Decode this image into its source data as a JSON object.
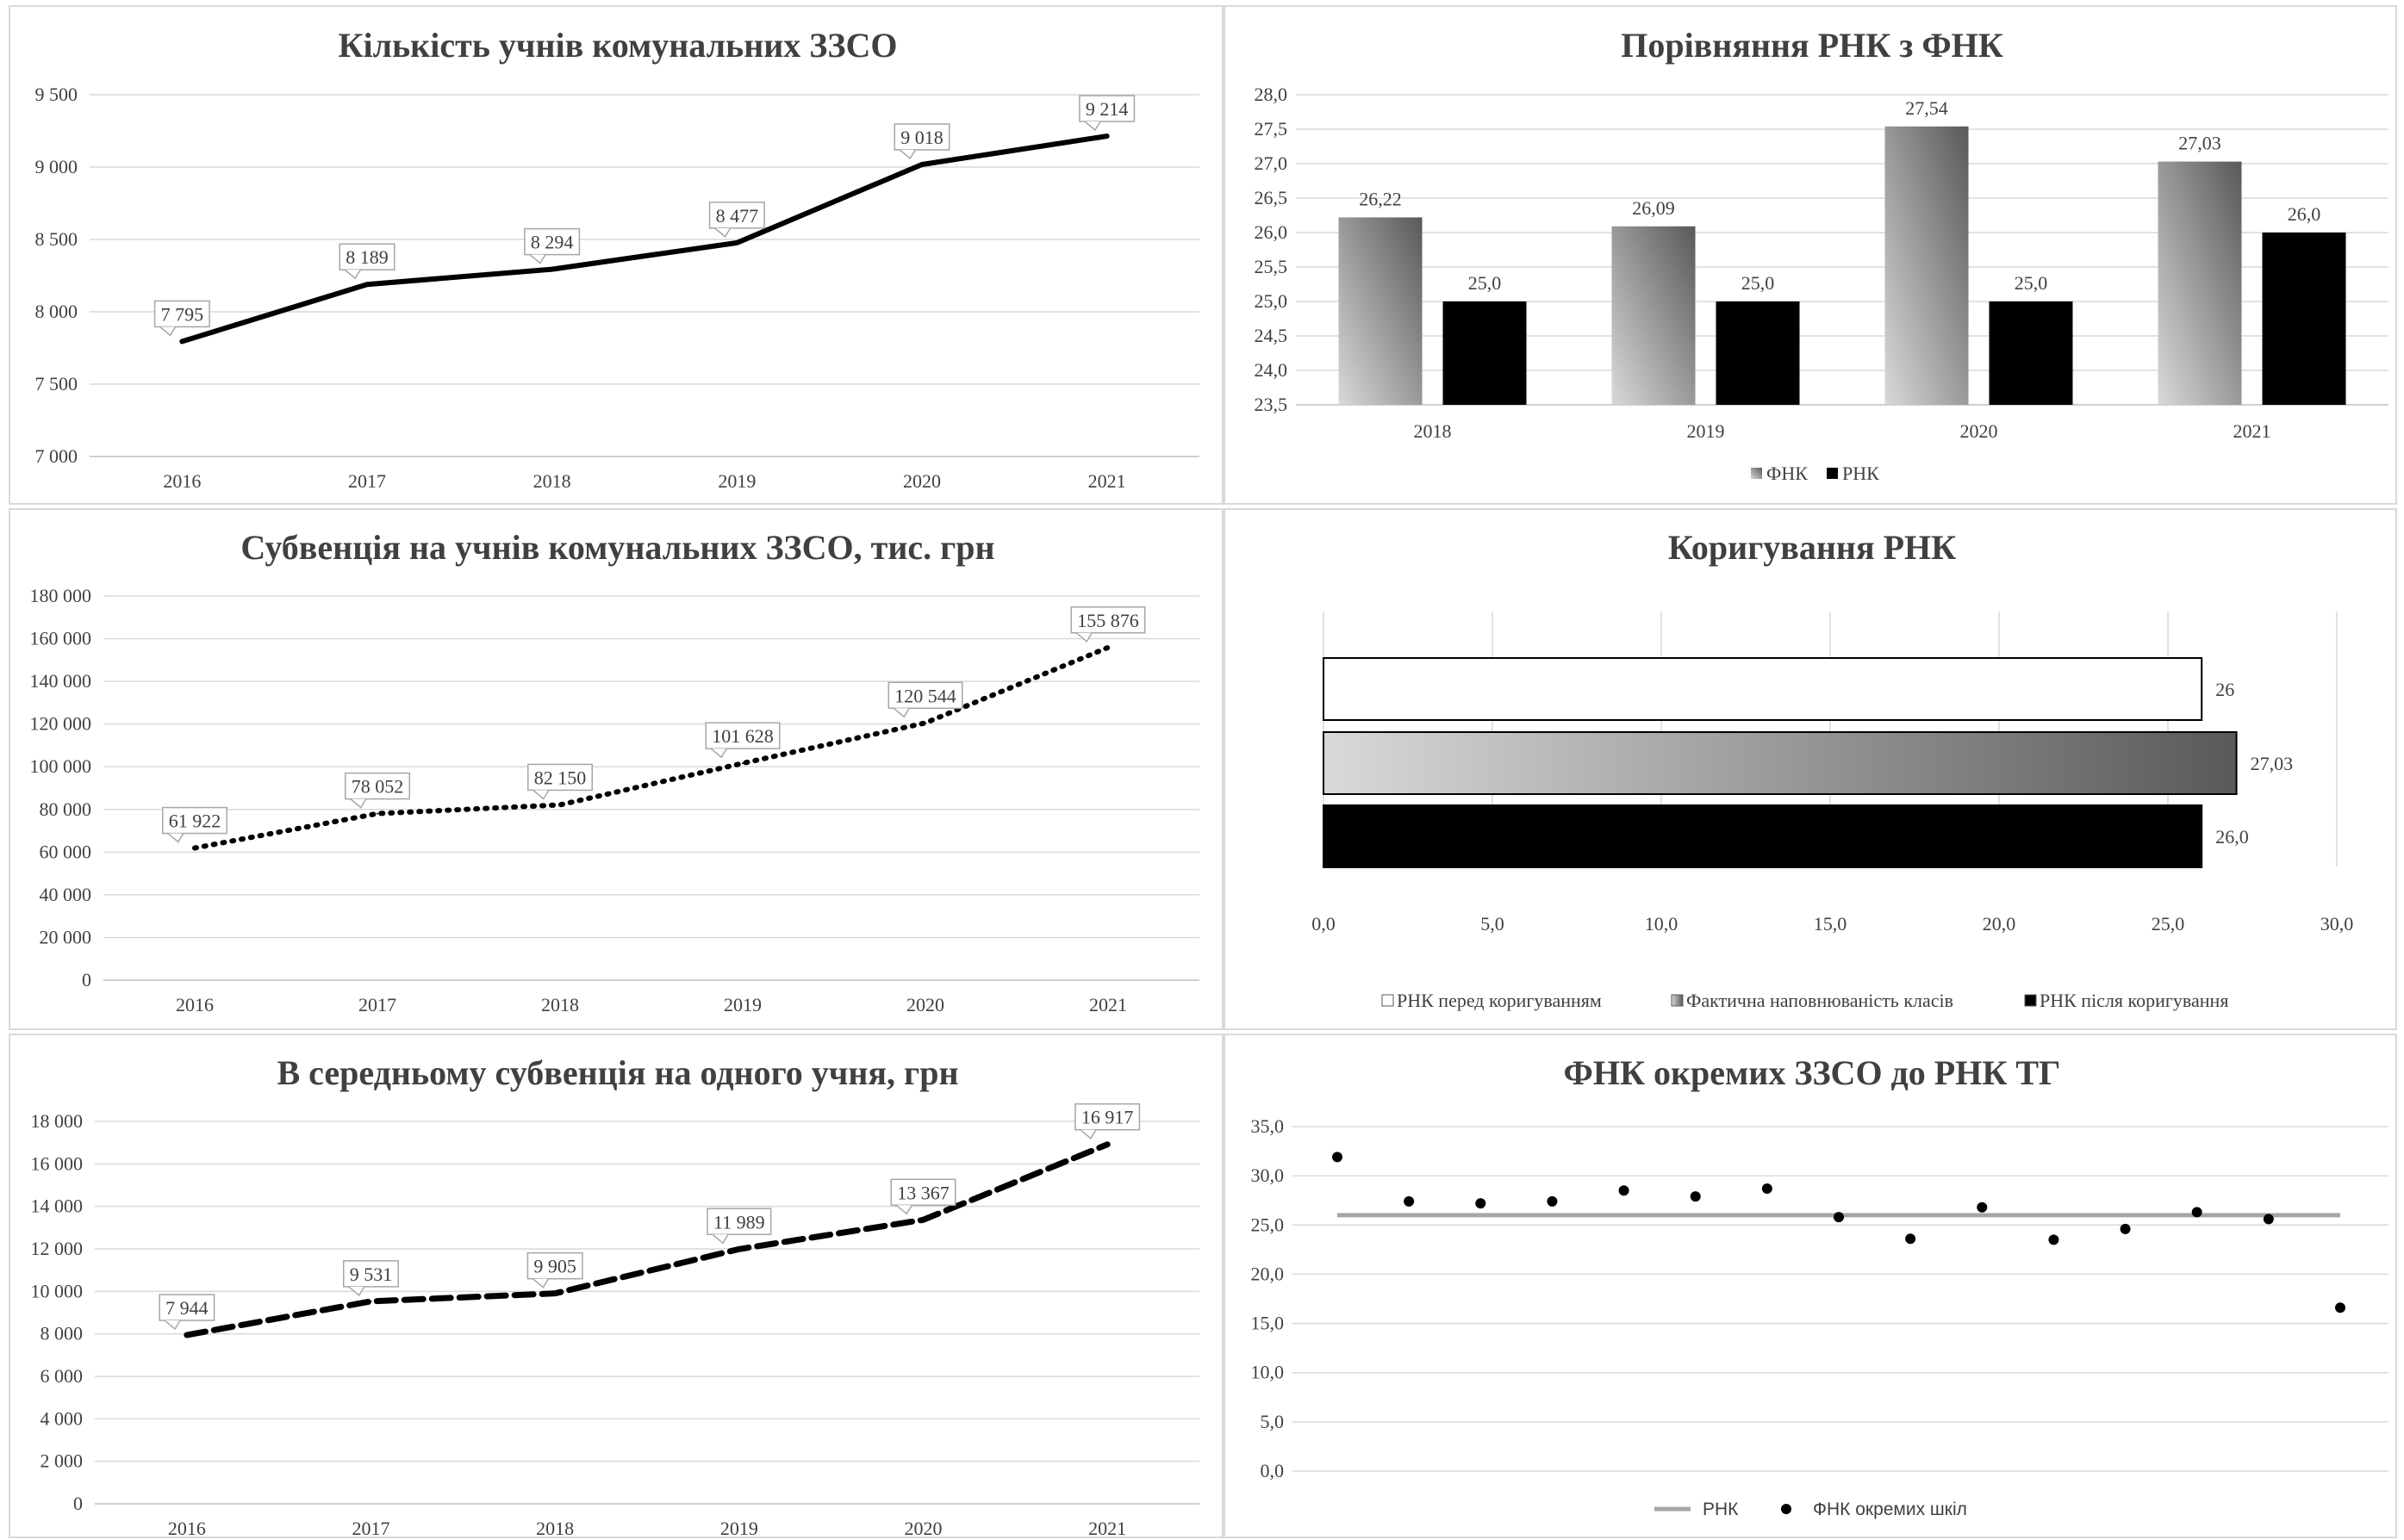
{
  "chart_data": [
    {
      "id": "students",
      "type": "line",
      "title": "Кількість учнів комунальних ЗЗСО",
      "categories": [
        "2016",
        "2017",
        "2018",
        "2019",
        "2020",
        "2021"
      ],
      "series": [
        {
          "values": [
            7795,
            8189,
            8294,
            8477,
            9018,
            9214
          ],
          "labels": [
            "7 795",
            "8 189",
            "8 294",
            "8 477",
            "9 018",
            "9 214"
          ],
          "style": "solid"
        }
      ],
      "ylim": [
        7000,
        9500
      ],
      "yticks": [
        7000,
        7500,
        8000,
        8500,
        9000,
        9500
      ],
      "ytick_labels": [
        "7 000",
        "7 500",
        "8 000",
        "8 500",
        "9 000",
        "9 500"
      ],
      "grid": true
    },
    {
      "id": "compare",
      "type": "bar",
      "title": "Порівняння РНК з ФНК",
      "categories": [
        "2018",
        "2019",
        "2020",
        "2021"
      ],
      "series": [
        {
          "name": "ФНК",
          "values": [
            26.22,
            26.09,
            27.54,
            27.03
          ],
          "labels": [
            "26,22",
            "26,09",
            "27,54",
            "27,03"
          ],
          "color": "gradient-gray"
        },
        {
          "name": "РНК",
          "values": [
            25.0,
            25.0,
            25.0,
            26.0
          ],
          "labels": [
            "25,0",
            "25,0",
            "25,0",
            "26,0"
          ],
          "color": "#000000"
        }
      ],
      "ylim": [
        23.5,
        28.0
      ],
      "yticks": [
        23.5,
        24.0,
        24.5,
        25.0,
        25.5,
        26.0,
        26.5,
        27.0,
        27.5,
        28.0
      ],
      "ytick_labels": [
        "23,5",
        "24,0",
        "24,5",
        "25,0",
        "25,5",
        "26,0",
        "26,5",
        "27,0",
        "27,5",
        "28,0"
      ],
      "legend": "bottom",
      "grid": true
    },
    {
      "id": "subvention",
      "type": "line",
      "title": "Субвенція на учнів комунальних ЗЗСО, тис. грн",
      "categories": [
        "2016",
        "2017",
        "2018",
        "2019",
        "2020",
        "2021"
      ],
      "series": [
        {
          "values": [
            61922,
            78052,
            82150,
            101628,
            120544,
            155876
          ],
          "labels": [
            "61 922",
            "78 052",
            "82 150",
            "101 628",
            "120 544",
            "155 876"
          ],
          "style": "dotted"
        }
      ],
      "ylim": [
        0,
        180000
      ],
      "yticks": [
        0,
        20000,
        40000,
        60000,
        80000,
        100000,
        120000,
        140000,
        160000,
        180000
      ],
      "ytick_labels": [
        "0",
        "20 000",
        "40 000",
        "60 000",
        "80 000",
        "100 000",
        "120 000",
        "140 000",
        "160 000",
        "180 000"
      ],
      "grid": true
    },
    {
      "id": "adjust",
      "type": "bar",
      "orientation": "horizontal",
      "title": "Коригування РНК",
      "series": [
        {
          "name": "РНК перед коригуванням",
          "value": 26,
          "label": "26",
          "color": "#ffffff"
        },
        {
          "name": "Фактична наповнюваність класів",
          "value": 27.03,
          "label": "27,03",
          "color": "gradient-gray"
        },
        {
          "name": "РНК після коригування",
          "value": 26.0,
          "label": "26,0",
          "color": "#000000"
        }
      ],
      "xlim": [
        0,
        30
      ],
      "xticks": [
        0,
        5,
        10,
        15,
        20,
        25,
        30
      ],
      "xtick_labels": [
        "0,0",
        "5,0",
        "10,0",
        "15,0",
        "20,0",
        "25,0",
        "30,0"
      ],
      "legend": "bottom",
      "grid": true
    },
    {
      "id": "perstudent",
      "type": "line",
      "title": "В середньому субвенція на одного учня, грн",
      "categories": [
        "2016",
        "2017",
        "2018",
        "2019",
        "2020",
        "2021"
      ],
      "series": [
        {
          "values": [
            7944,
            9531,
            9905,
            11989,
            13367,
            16917
          ],
          "labels": [
            "7 944",
            "9 531",
            "9 905",
            "11 989",
            "13 367",
            "16 917"
          ],
          "style": "dashed"
        }
      ],
      "ylim": [
        0,
        18000
      ],
      "yticks": [
        0,
        2000,
        4000,
        6000,
        8000,
        10000,
        12000,
        14000,
        16000,
        18000
      ],
      "ytick_labels": [
        "0",
        "2 000",
        "4 000",
        "6 000",
        "8 000",
        "10 000",
        "12 000",
        "14 000",
        "16 000",
        "18 000"
      ],
      "grid": true
    },
    {
      "id": "schools",
      "type": "scatter",
      "title": "ФНК окремих ЗЗСО до РНК ТГ",
      "series": [
        {
          "name": "РНК",
          "kind": "line",
          "value": 26.0,
          "color": "#a6a6a6"
        },
        {
          "name": "ФНК окремих шкіл",
          "kind": "points",
          "values": [
            31.9,
            27.4,
            27.2,
            27.4,
            28.5,
            27.9,
            28.7,
            25.8,
            23.6,
            26.8,
            23.5,
            24.6,
            26.3,
            25.6,
            16.6
          ]
        }
      ],
      "ylim": [
        0,
        35
      ],
      "yticks": [
        0,
        5,
        10,
        15,
        20,
        25,
        30,
        35
      ],
      "ytick_labels": [
        "0,0",
        "5,0",
        "10,0",
        "15,0",
        "20,0",
        "25,0",
        "30,0",
        "35,0"
      ],
      "legend": "bottom",
      "grid": true
    }
  ]
}
